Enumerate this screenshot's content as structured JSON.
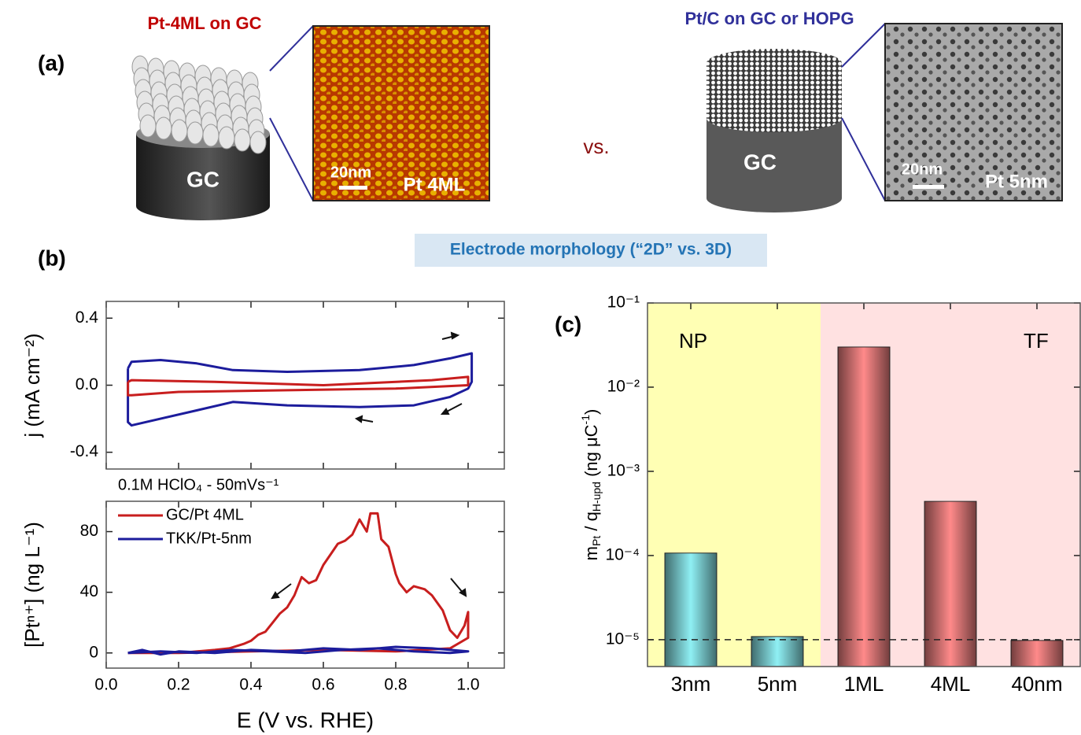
{
  "panel_a": {
    "label": "(a)",
    "left_title": "Pt-4ML on GC",
    "left_cylinder": "GC",
    "left_scale": "20nm",
    "left_image_label": "Pt 4ML",
    "versus": "vs.",
    "right_title": "Pt/C on GC or HOPG",
    "right_cylinder": "GC",
    "right_scale": "20nm",
    "right_image_label": "Pt 5nm"
  },
  "panel_b": {
    "label": "(b)"
  },
  "banner": "Electrode morphology (“2D” vs. 3D)",
  "panel_c": {
    "label": "(c)"
  },
  "chart_data": [
    {
      "type": "line",
      "ylabel": "j (mA cm⁻²)",
      "xlim": [
        0,
        1.1
      ],
      "xticks": [
        0,
        0.2,
        0.4,
        0.6,
        0.8,
        1.0
      ],
      "ylim": [
        -0.5,
        0.5
      ],
      "yticks": [
        {
          "value": 0.4,
          "label": "0.4"
        },
        {
          "value": 0,
          "label": "0.0"
        },
        {
          "value": -0.4,
          "label": "-0.4"
        }
      ],
      "series": [
        {
          "color": "#1c1c9c",
          "x": [
            0.06,
            0.07,
            0.15,
            0.25,
            0.35,
            0.5,
            0.7,
            0.85,
            0.95,
            1.01,
            1.01,
            1.0,
            0.95,
            0.85,
            0.7,
            0.5,
            0.35,
            0.25,
            0.15,
            0.07,
            0.06,
            0.06
          ],
          "values": [
            0.1,
            0.14,
            0.15,
            0.13,
            0.09,
            0.08,
            0.09,
            0.12,
            0.16,
            0.19,
            0.02,
            -0.02,
            -0.07,
            -0.12,
            -0.13,
            -0.12,
            -0.1,
            -0.15,
            -0.2,
            -0.24,
            -0.22,
            0.1
          ]
        },
        {
          "color": "#c81e1e",
          "x": [
            0.06,
            0.07,
            0.3,
            0.6,
            0.9,
            1.0,
            1.0,
            0.8,
            0.5,
            0.2,
            0.07,
            0.06,
            0.06
          ],
          "values": [
            0.02,
            0.03,
            0.02,
            0.0,
            0.03,
            0.05,
            0.0,
            -0.02,
            -0.03,
            -0.04,
            -0.06,
            -0.06,
            0.02
          ]
        }
      ]
    },
    {
      "type": "line",
      "xlabel": "E (V vs. RHE)",
      "ylabel": "[Ptⁿ⁺] (ng L⁻¹)",
      "annotation": "0.1M HClO₄ - 50mVs⁻¹",
      "xlim": [
        0,
        1.1
      ],
      "xticks": [
        {
          "value": 0,
          "label": "0.0"
        },
        {
          "value": 0.2,
          "label": "0.2"
        },
        {
          "value": 0.4,
          "label": "0.4"
        },
        {
          "value": 0.6,
          "label": "0.6"
        },
        {
          "value": 0.8,
          "label": "0.8"
        },
        {
          "value": 1.0,
          "label": "1.0"
        }
      ],
      "ylim": [
        -10,
        100
      ],
      "yticks": [
        0,
        40,
        80
      ],
      "series": [
        {
          "name": "GC/Pt 4ML",
          "color": "#c81e1e",
          "x": [
            0.06,
            0.2,
            0.4,
            0.6,
            0.8,
            0.95,
            1.0,
            1.0,
            0.99,
            0.97,
            0.95,
            0.93,
            0.9,
            0.88,
            0.85,
            0.83,
            0.81,
            0.8,
            0.78,
            0.76,
            0.75,
            0.73,
            0.72,
            0.7,
            0.68,
            0.66,
            0.64,
            0.62,
            0.6,
            0.58,
            0.56,
            0.54,
            0.52,
            0.5,
            0.48,
            0.46,
            0.44,
            0.42,
            0.4,
            0.38,
            0.34,
            0.3,
            0.2,
            0.06
          ],
          "values": [
            0,
            0,
            1,
            2,
            1,
            3,
            10,
            27,
            18,
            10,
            15,
            28,
            38,
            42,
            44,
            40,
            46,
            52,
            70,
            75,
            92,
            92,
            80,
            88,
            78,
            74,
            72,
            65,
            58,
            48,
            46,
            50,
            38,
            30,
            26,
            20,
            14,
            12,
            8,
            6,
            3,
            2,
            0,
            0
          ]
        },
        {
          "name": "TKK/Pt-5nm",
          "color": "#1c1c9c",
          "x": [
            0.06,
            0.1,
            0.15,
            0.2,
            0.3,
            0.4,
            0.5,
            0.6,
            0.7,
            0.8,
            0.9,
            1.0,
            0.95,
            0.85,
            0.75,
            0.65,
            0.55,
            0.45,
            0.35,
            0.25,
            0.15,
            0.06
          ],
          "values": [
            0,
            2,
            -1,
            1,
            0,
            2,
            1,
            3,
            2,
            4,
            3,
            1,
            0,
            1,
            3,
            2,
            0,
            1,
            2,
            0,
            1,
            0
          ]
        }
      ]
    },
    {
      "type": "bar",
      "ylabel": [
        "m",
        "Pt",
        " / q",
        "H-upd",
        " (ng μC",
        "-1",
        ")"
      ],
      "log_y": true,
      "ylim": [
        4.8e-06,
        0.1
      ],
      "yticks": [
        {
          "value": 0.1,
          "label": "10⁻¹"
        },
        {
          "value": 0.01,
          "label": "10⁻²"
        },
        {
          "value": 0.001,
          "label": "10⁻³"
        },
        {
          "value": 0.0001,
          "label": "10⁻⁴"
        },
        {
          "value": 1e-05,
          "label": "10⁻⁵"
        }
      ],
      "categories": [
        "3nm",
        "5nm",
        "1ML",
        "4ML",
        "40nm"
      ],
      "values": [
        0.000107,
        1.09e-05,
        0.03,
        0.00044,
        9.8e-06
      ],
      "colors": [
        "#8ff0f4",
        "#8ff0f4",
        "#ff8a8a",
        "#ff8a8a",
        "#ff8a8a"
      ],
      "reference_line": 1e-05,
      "regions": [
        {
          "label": "NP",
          "from": 0,
          "to": 1,
          "color": "#ffffb4"
        },
        {
          "label": "TF",
          "from": 2,
          "to": 4,
          "color": "#ffe1e1"
        }
      ]
    }
  ]
}
